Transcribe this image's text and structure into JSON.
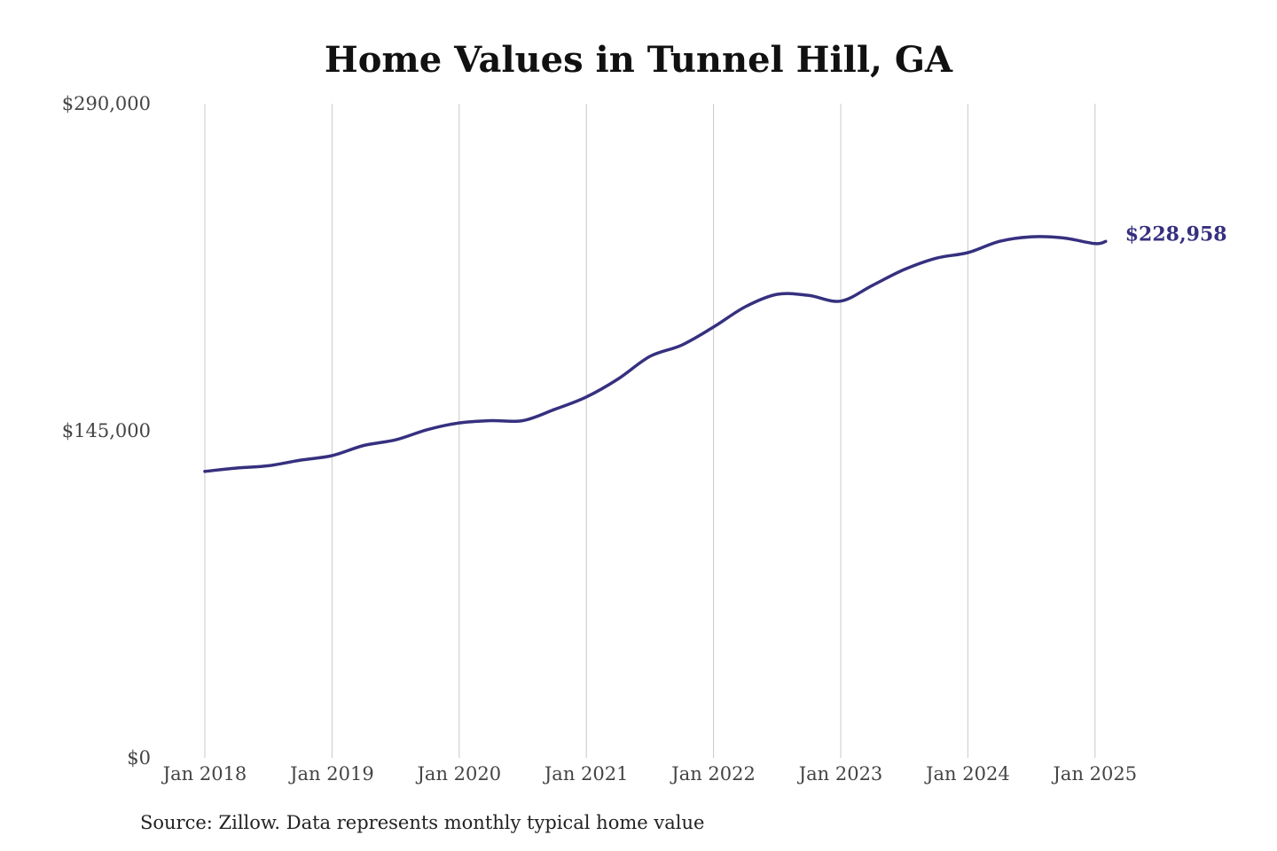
{
  "chart_data": {
    "type": "line",
    "title": "Home Values in Tunnel Hill, GA",
    "source": "Source: Zillow. Data represents monthly typical home value",
    "xlabel": "",
    "ylabel": "",
    "ylim": [
      0,
      290000
    ],
    "xlim": [
      "2018-01",
      "2025-02"
    ],
    "yticks": [
      0,
      145000,
      290000
    ],
    "ytick_labels": [
      "$0",
      "$145,000",
      "$290,000"
    ],
    "xticks": [
      "2018-01",
      "2019-01",
      "2020-01",
      "2021-01",
      "2022-01",
      "2023-01",
      "2024-01",
      "2025-01"
    ],
    "xtick_labels": [
      "Jan 2018",
      "Jan 2019",
      "Jan 2020",
      "Jan 2021",
      "Jan 2022",
      "Jan 2023",
      "Jan 2024",
      "Jan 2025"
    ],
    "grid": {
      "vertical": true,
      "horizontal": false
    },
    "line_color": "#36307f",
    "grid_color": "#c8c8c8",
    "end_label": "$228,958",
    "series": [
      {
        "x": [
          "2018-01",
          "2018-04",
          "2018-07",
          "2018-10",
          "2019-01",
          "2019-04",
          "2019-07",
          "2019-10",
          "2020-01",
          "2020-04",
          "2020-07",
          "2020-10",
          "2021-01",
          "2021-04",
          "2021-07",
          "2021-10",
          "2022-01",
          "2022-04",
          "2022-07",
          "2022-10",
          "2023-01",
          "2023-04",
          "2023-07",
          "2023-10",
          "2024-01",
          "2024-04",
          "2024-07",
          "2024-10",
          "2025-01",
          "2025-02"
        ],
        "values": [
          127000,
          128500,
          129500,
          132000,
          134000,
          138500,
          141000,
          145500,
          148500,
          149500,
          149500,
          154500,
          160000,
          168000,
          178000,
          183000,
          191000,
          200000,
          205500,
          205000,
          202500,
          209500,
          216500,
          221500,
          224000,
          229000,
          231000,
          230500,
          228000,
          228958
        ]
      }
    ]
  }
}
